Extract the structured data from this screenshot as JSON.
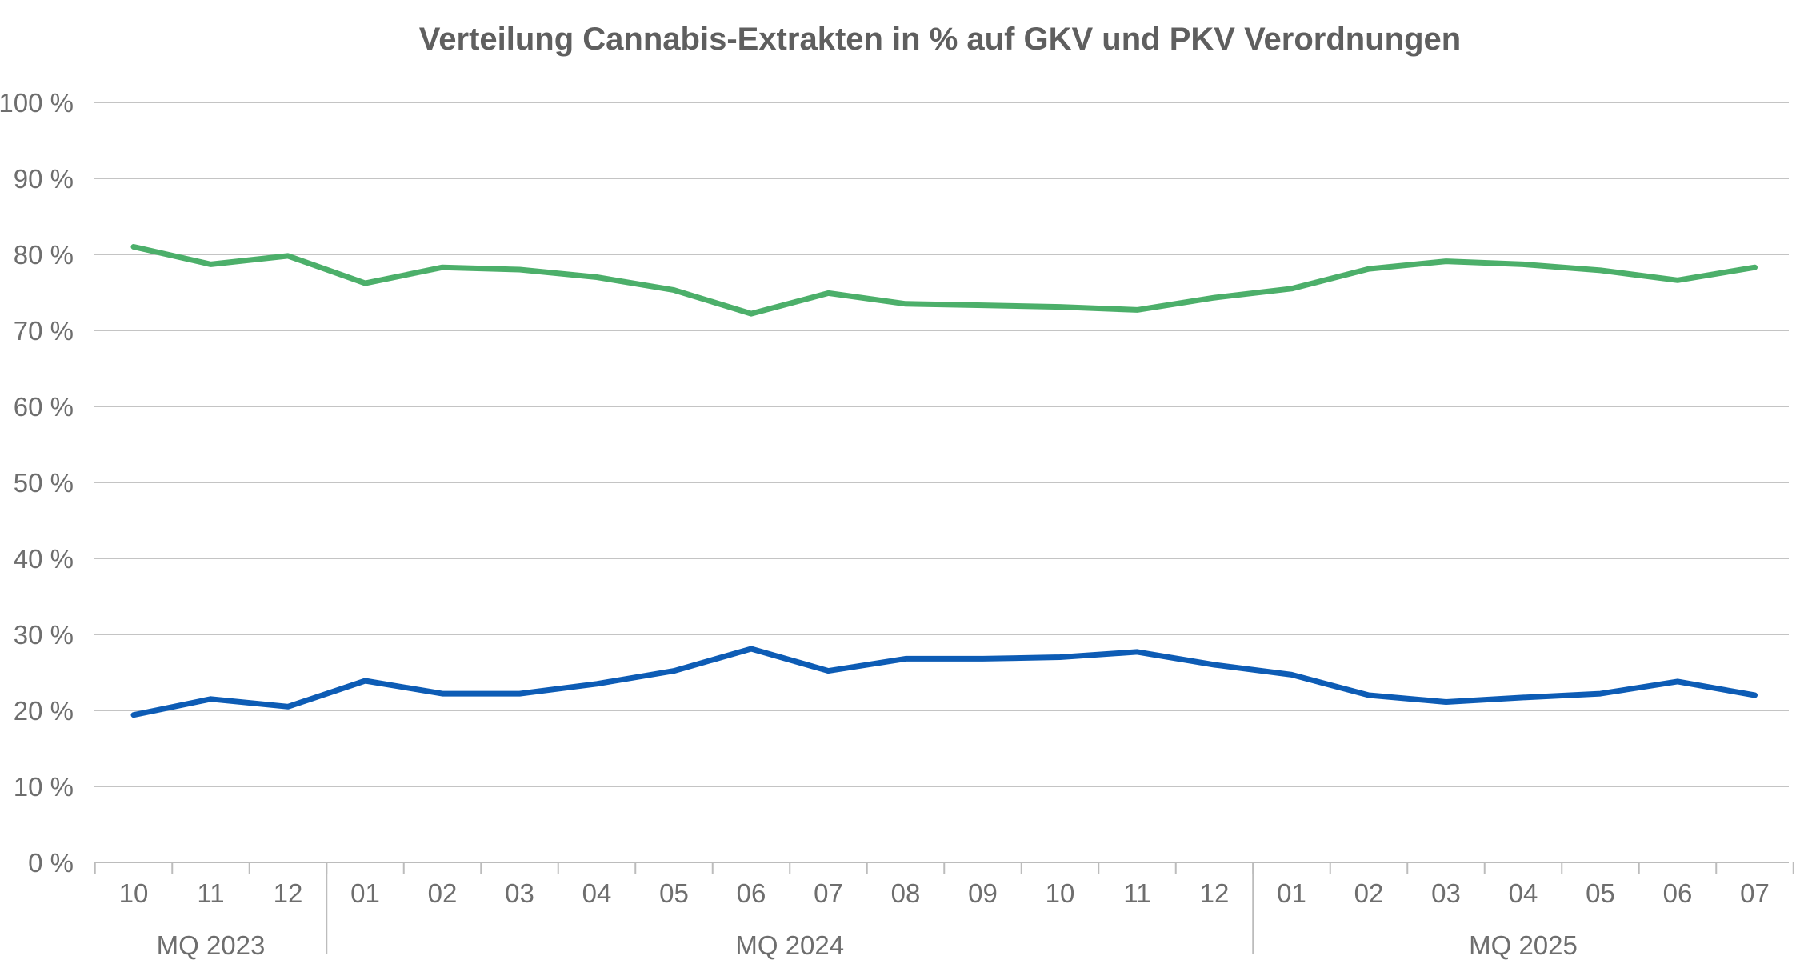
{
  "chart_data": {
    "type": "line",
    "title": "Verteilung Cannabis-Extrakten in % auf GKV und PKV Verordnungen",
    "xlabel": "",
    "ylabel": "",
    "ylim": [
      0,
      100
    ],
    "yticks": [
      0,
      10,
      20,
      30,
      40,
      50,
      60,
      70,
      80,
      90,
      100
    ],
    "ytick_labels": [
      "0 %",
      "10 %",
      "20 %",
      "30 %",
      "40 %",
      "50 %",
      "60 %",
      "70 %",
      "80 %",
      "90 %",
      "100 %"
    ],
    "categories": [
      "10",
      "11",
      "12",
      "01",
      "02",
      "03",
      "04",
      "05",
      "06",
      "07",
      "08",
      "09",
      "10",
      "11",
      "12",
      "01",
      "02",
      "03",
      "04",
      "05",
      "06",
      "07"
    ],
    "groups": [
      {
        "label": "MQ 2023",
        "start": 0,
        "end": 2
      },
      {
        "label": "MQ 2024",
        "start": 3,
        "end": 14
      },
      {
        "label": "MQ 2025",
        "start": 15,
        "end": 21
      }
    ],
    "series": [
      {
        "color": "#4caf6a",
        "values": [
          81.0,
          78.7,
          79.8,
          76.2,
          78.3,
          78.0,
          77.0,
          75.3,
          72.2,
          74.9,
          73.5,
          73.3,
          73.1,
          72.7,
          74.3,
          75.5,
          78.1,
          79.1,
          78.7,
          77.9,
          76.6,
          78.3
        ]
      },
      {
        "color": "#0d5cb5",
        "values": [
          19.4,
          21.5,
          20.5,
          23.9,
          22.2,
          22.2,
          23.5,
          25.2,
          28.1,
          25.2,
          26.8,
          26.8,
          27.0,
          27.7,
          26.0,
          24.7,
          22.0,
          21.1,
          21.7,
          22.2,
          23.8,
          22.0
        ]
      }
    ],
    "grid": true,
    "legend": "none"
  }
}
